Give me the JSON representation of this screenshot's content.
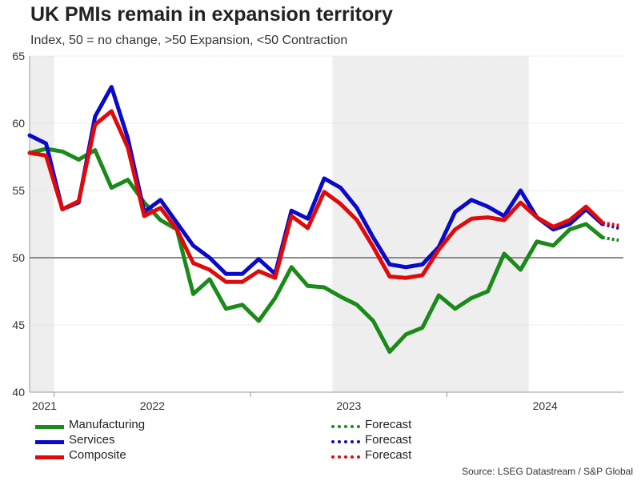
{
  "chart_data": {
    "type": "line",
    "title": "UK PMIs remain in expansion territory",
    "subtitle": "Index, 50 = no change, >50 Expansion, <50 Contraction",
    "xlabel": "",
    "ylabel": "",
    "ylim": [
      40,
      65
    ],
    "yticks": [
      "40",
      "45",
      "50",
      "55",
      "60",
      "65"
    ],
    "year_labels": [
      "2021",
      "2022",
      "2023",
      "2024"
    ],
    "reference_line": 50,
    "shaded_periods": [
      {
        "start": 0,
        "end": 1.5
      },
      {
        "start": 18.5,
        "end": 30.5
      }
    ],
    "series": [
      {
        "name": "Manufacturing",
        "color": "#1a8a1a",
        "values": [
          57.8,
          58.1,
          57.9,
          57.3,
          58.0,
          55.2,
          55.8,
          54.1,
          52.8,
          52.1,
          47.3,
          48.4,
          46.2,
          46.5,
          45.3,
          47.0,
          49.3,
          47.9,
          47.8,
          47.1,
          46.5,
          45.3,
          43.0,
          44.3,
          44.8,
          47.2,
          46.2,
          47.0,
          47.5,
          50.3,
          49.1,
          51.2,
          50.9,
          52.1,
          52.5,
          51.5
        ],
        "forecast": [
          51.5,
          51.3
        ]
      },
      {
        "name": "Services",
        "color": "#0a0ac8",
        "values": [
          59.1,
          58.5,
          53.6,
          54.1,
          60.5,
          62.7,
          58.9,
          53.4,
          54.3,
          52.6,
          50.9,
          50.0,
          48.8,
          48.8,
          49.9,
          48.8,
          53.5,
          52.9,
          55.9,
          55.2,
          53.7,
          51.5,
          49.5,
          49.3,
          49.5,
          50.8,
          53.4,
          54.3,
          53.8,
          53.1,
          55.0,
          53.0,
          52.1,
          52.5,
          53.6,
          52.5
        ],
        "forecast": [
          52.5,
          52.2
        ]
      },
      {
        "name": "Composite",
        "color": "#e00a0a",
        "values": [
          57.8,
          57.6,
          53.6,
          54.2,
          59.9,
          60.9,
          58.2,
          53.1,
          53.7,
          52.1,
          49.6,
          49.1,
          48.2,
          48.2,
          49.0,
          48.5,
          53.1,
          52.2,
          54.9,
          54.0,
          52.8,
          50.8,
          48.6,
          48.5,
          48.7,
          50.6,
          52.1,
          52.9,
          53.0,
          52.8,
          54.1,
          53.0,
          52.3,
          52.8,
          53.8,
          52.6
        ],
        "forecast": [
          52.6,
          52.4
        ]
      }
    ],
    "forecast_label": "Forecast",
    "legend_position": "bottom"
  },
  "source": "Source: LSEG Datastream / S&P Global"
}
